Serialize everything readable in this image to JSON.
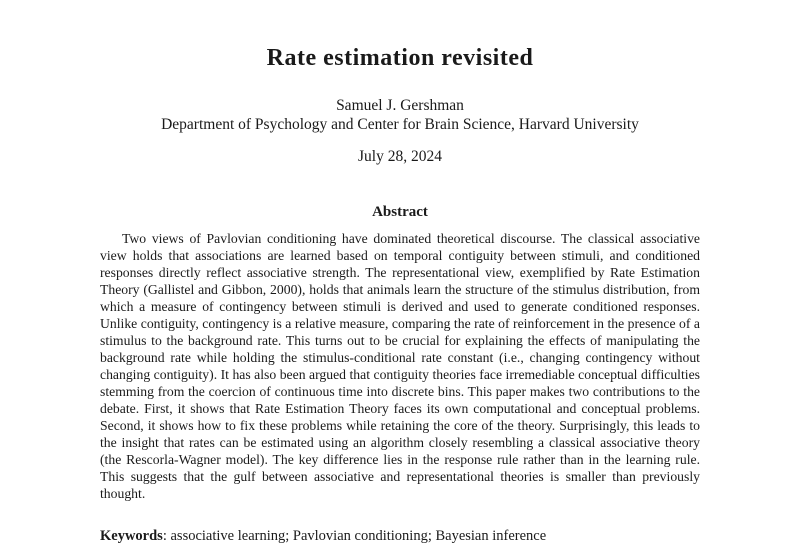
{
  "paper": {
    "title": "Rate estimation revisited",
    "author": "Samuel J. Gershman",
    "affiliation": "Department of Psychology and Center for Brain Science, Harvard University",
    "date": "July 28, 2024",
    "abstract": {
      "heading": "Abstract",
      "text": "Two views of Pavlovian conditioning have dominated theoretical discourse. The classical associative view holds that associations are learned based on temporal contiguity between stimuli, and conditioned responses directly reflect associative strength. The representational view, exemplified by Rate Estimation Theory (Gallistel and Gibbon, 2000), holds that animals learn the structure of the stimulus distribution, from which a measure of contingency between stimuli is derived and used to generate conditioned responses. Unlike contiguity, contingency is a relative measure, comparing the rate of reinforcement in the presence of a stimulus to the background rate. This turns out to be crucial for explaining the effects of manipulating the background rate while holding the stimulus-conditional rate constant (i.e., changing contingency without changing contiguity). It has also been argued that contiguity theories face irremediable conceptual difficulties stemming from the coercion of continuous time into discrete bins. This paper makes two contributions to the debate. First, it shows that Rate Estimation Theory faces its own computational and conceptual problems. Second, it shows how to fix these problems while retaining the core of the theory. Surprisingly, this leads to the insight that rates can be estimated using an algorithm closely resembling a classical associative theory (the Rescorla-Wagner model). The key difference lies in the response rule rather than in the learning rule. This suggests that the gulf between associative and representational theories is smaller than previously thought."
    },
    "keywords": {
      "label": "Keywords",
      "rest": ": associative learning; Pavlovian conditioning; Bayesian inference"
    },
    "colors": {
      "text": "#1a1a1a",
      "background": "#ffffff"
    }
  }
}
